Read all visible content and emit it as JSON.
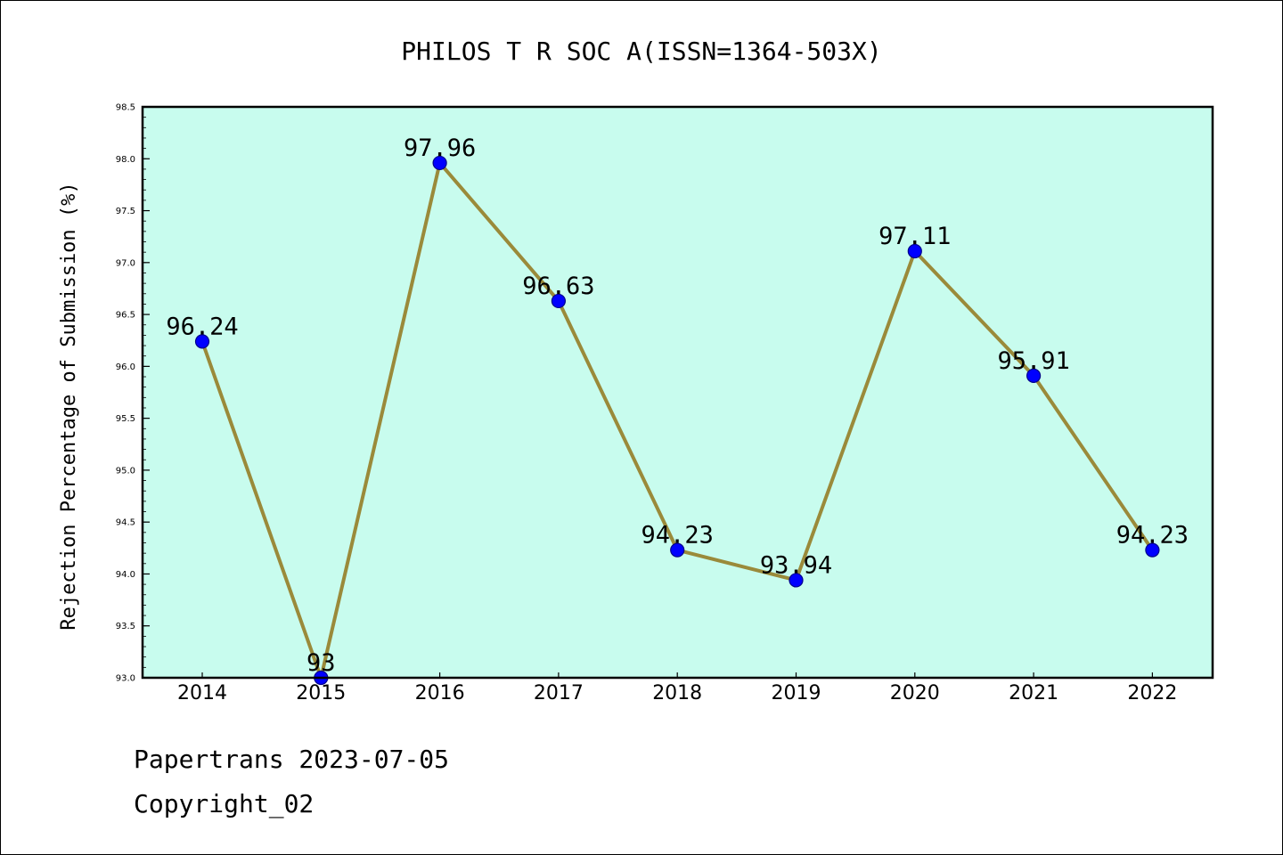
{
  "chart_data": {
    "type": "line",
    "title": "PHILOS T R SOC A(ISSN=1364-503X)",
    "xlabel": "",
    "ylabel": "Rejection Percentage of Submission (%)",
    "categories": [
      "2014",
      "2015",
      "2016",
      "2017",
      "2018",
      "2019",
      "2020",
      "2021",
      "2022"
    ],
    "series": [
      {
        "values": [
          96.24,
          93,
          97.96,
          96.63,
          94.23,
          93.94,
          97.11,
          95.91,
          94.23
        ],
        "data_labels": [
          "96.24",
          "93",
          "97.96",
          "96.63",
          "94.23",
          "93.94",
          "97.11",
          "95.91",
          "94.23"
        ]
      }
    ],
    "ylim": [
      93.0,
      98.5
    ],
    "yticks": [
      "93.0",
      "93.5",
      "94.0",
      "94.5",
      "95.0",
      "95.5",
      "96.0",
      "96.5",
      "97.0",
      "97.5",
      "98.0",
      "98.5"
    ],
    "grid": false,
    "colors": {
      "plot_background": "#c8fcee",
      "line": "#9a8a3a",
      "marker_fill": "#0000ff",
      "marker_edge": "#00008b"
    }
  },
  "footer": {
    "line1": "Papertrans 2023-07-05",
    "line2": "Copyright_02"
  }
}
